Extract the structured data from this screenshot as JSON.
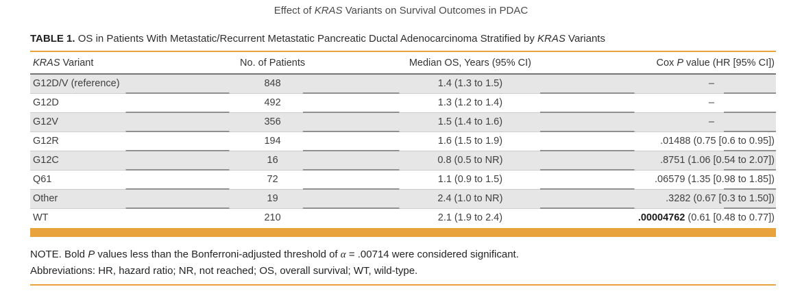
{
  "title": {
    "prefix": "Effect of ",
    "italic": "KRAS",
    "suffix": " Variants on Survival Outcomes in PDAC"
  },
  "caption": {
    "label": "TABLE 1.",
    "prefix": " OS in Patients With Metastatic/Recurrent Metastatic Pancreatic Ductal Adenocarcinoma Stratified by ",
    "italic": "KRAS",
    "suffix": " Variants"
  },
  "table": {
    "headers": {
      "col1_italic": "KRAS",
      "col1_rest": " Variant",
      "col2": "No. of Patients",
      "col3": "Median OS, Years (95% CI)",
      "col4_prefix": "Cox ",
      "col4_italic": "P",
      "col4_suffix": " value (HR [95% CI])"
    },
    "rows": [
      {
        "variant": "G12D/V (reference)",
        "patients": "848",
        "median_os": "1.4 (1.3 to 1.5)",
        "cox_bold": "",
        "cox_rest": "–"
      },
      {
        "variant": "G12D",
        "patients": "492",
        "median_os": "1.3 (1.2 to 1.4)",
        "cox_bold": "",
        "cox_rest": "–"
      },
      {
        "variant": "G12V",
        "patients": "356",
        "median_os": "1.5 (1.4 to 1.6)",
        "cox_bold": "",
        "cox_rest": "–"
      },
      {
        "variant": "G12R",
        "patients": "194",
        "median_os": "1.6 (1.5 to 1.9)",
        "cox_bold": "",
        "cox_rest": ".01488 (0.75 [0.6 to 0.95])"
      },
      {
        "variant": "G12C",
        "patients": "16",
        "median_os": "0.8 (0.5 to NR)",
        "cox_bold": "",
        "cox_rest": ".8751 (1.06 [0.54 to 2.07])"
      },
      {
        "variant": "Q61",
        "patients": "72",
        "median_os": "1.1 (0.9 to 1.5)",
        "cox_bold": "",
        "cox_rest": ".06579 (1.35 [0.98 to 1.85])"
      },
      {
        "variant": "Other",
        "patients": "19",
        "median_os": "2.4 (1.0 to NR)",
        "cox_bold": "",
        "cox_rest": ".3282 (0.67 [0.3 to 1.50])"
      },
      {
        "variant": "WT",
        "patients": "210",
        "median_os": "2.1 (1.9 to 2.4)",
        "cox_bold": ".00004762",
        "cox_rest": " (0.61 [0.48 to 0.77])"
      }
    ]
  },
  "note": {
    "p1": "NOTE. Bold ",
    "italic_p": "P",
    "p2": " values less than the Bonferroni-adjusted threshold of ",
    "alpha": "α",
    "p3": " = .00714 were considered significant.",
    "abbreviations": "Abbreviations: HR, hazard ratio; NR, not reached; OS, overall survival; WT, wild-type."
  },
  "colors": {
    "accent_orange": "#E8A33C",
    "row_shade": "#E6E6E6",
    "rule_dark": "#757575"
  }
}
